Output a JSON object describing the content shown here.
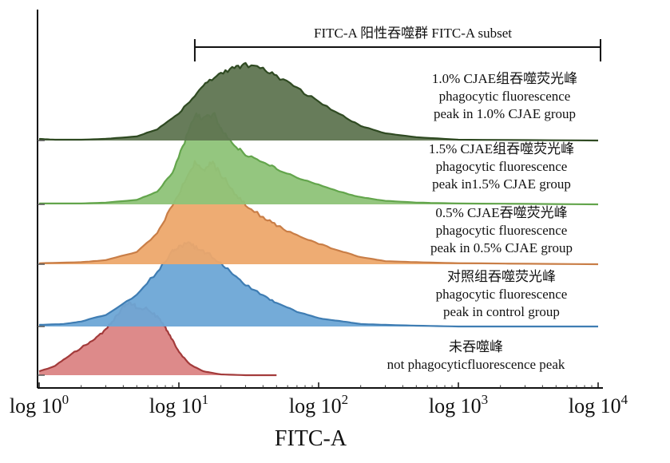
{
  "chart_data": {
    "type": "area",
    "x_scale": "log",
    "xlim": [
      1,
      10000
    ],
    "xlabel": "FITC-A",
    "x_ticks": [
      {
        "base": "log 10",
        "exp": "0",
        "value": 1
      },
      {
        "base": "log 10",
        "exp": "1",
        "value": 10
      },
      {
        "base": "log 10",
        "exp": "2",
        "value": 100
      },
      {
        "base": "log 10",
        "exp": "3",
        "value": 1000
      },
      {
        "base": "log 10",
        "exp": "4",
        "value": 10000
      }
    ],
    "gate": {
      "label": "FITC-A 阳性吞噬群 FITC-A subset",
      "range": [
        13,
        10000
      ]
    },
    "series": [
      {
        "key": "cjae10",
        "color": "#5f7551",
        "edge": "#2f4a22",
        "label_lines": [
          "1.0% CJAE组吞噬荧光峰",
          "phagocytic fluorescence",
          "peak in 1.0% CJAE group"
        ],
        "x": [
          1,
          1.3,
          2,
          3,
          5,
          7,
          10,
          13,
          16,
          20,
          25,
          30,
          40,
          50,
          70,
          100,
          150,
          200,
          300,
          500,
          1000,
          10000
        ],
        "y": [
          2,
          1,
          1,
          2,
          5,
          14,
          34,
          56,
          72,
          82,
          90,
          94,
          88,
          80,
          65,
          48,
          30,
          18,
          9,
          4,
          1,
          0
        ]
      },
      {
        "key": "cjae15",
        "color": "#8ec378",
        "edge": "#63a54c",
        "label_lines": [
          "1.5% CJAE组吞噬荧光峰",
          "phagocytic fluorescence",
          "peak in1.5% CJAE group"
        ],
        "x": [
          1,
          2,
          3,
          5,
          7,
          9,
          11,
          13,
          15,
          18,
          20,
          25,
          30,
          40,
          50,
          70,
          100,
          150,
          200,
          300,
          500,
          1000,
          10000
        ],
        "y": [
          1,
          1,
          2,
          5,
          14,
          36,
          70,
          100,
          96,
          100,
          84,
          66,
          55,
          47,
          40,
          30,
          22,
          13,
          8,
          4,
          2,
          1,
          0
        ]
      },
      {
        "key": "cjae05",
        "color": "#eda86c",
        "edge": "#c97e47",
        "label_lines": [
          "0.5% CJAE吞噬荧光峰",
          "phagocytic fluorescence",
          "peak in 0.5% CJAE group"
        ],
        "x": [
          1,
          2,
          3,
          5,
          7,
          9,
          11,
          13,
          15,
          17,
          20,
          25,
          30,
          40,
          50,
          70,
          100,
          150,
          200,
          300,
          500,
          1000,
          10000
        ],
        "y": [
          1,
          2,
          4,
          12,
          30,
          58,
          80,
          100,
          92,
          100,
          88,
          70,
          58,
          46,
          38,
          28,
          20,
          12,
          7,
          3,
          2,
          1,
          0
        ]
      },
      {
        "key": "control",
        "color": "#6da7d6",
        "edge": "#3f7db3",
        "label_lines": [
          "对照组吞噬荧光峰",
          "phagocytic fluorescence",
          "peak in control group"
        ],
        "x": [
          1,
          1.5,
          2,
          3,
          5,
          7,
          9,
          10,
          12,
          14,
          16,
          20,
          25,
          30,
          40,
          50,
          70,
          100,
          150,
          200,
          300,
          500,
          1000,
          10000
        ],
        "y": [
          2,
          3,
          6,
          14,
          38,
          66,
          90,
          96,
          100,
          92,
          88,
          76,
          62,
          50,
          38,
          28,
          18,
          10,
          6,
          3,
          2,
          1,
          0,
          0
        ]
      },
      {
        "key": "none",
        "color": "#db8484",
        "edge": "#a33b3b",
        "label_lines": [
          "未吞噬峰",
          "not phagocyticfluorescence peak"
        ],
        "x": [
          1,
          1.3,
          1.6,
          2,
          2.5,
          3,
          3.5,
          4,
          4.5,
          5,
          6,
          7,
          8,
          9,
          10,
          12,
          15,
          20,
          30,
          50
        ],
        "y": [
          5,
          12,
          24,
          36,
          48,
          60,
          74,
          90,
          96,
          88,
          88,
          76,
          62,
          46,
          30,
          14,
          5,
          1,
          0,
          0
        ]
      }
    ]
  }
}
